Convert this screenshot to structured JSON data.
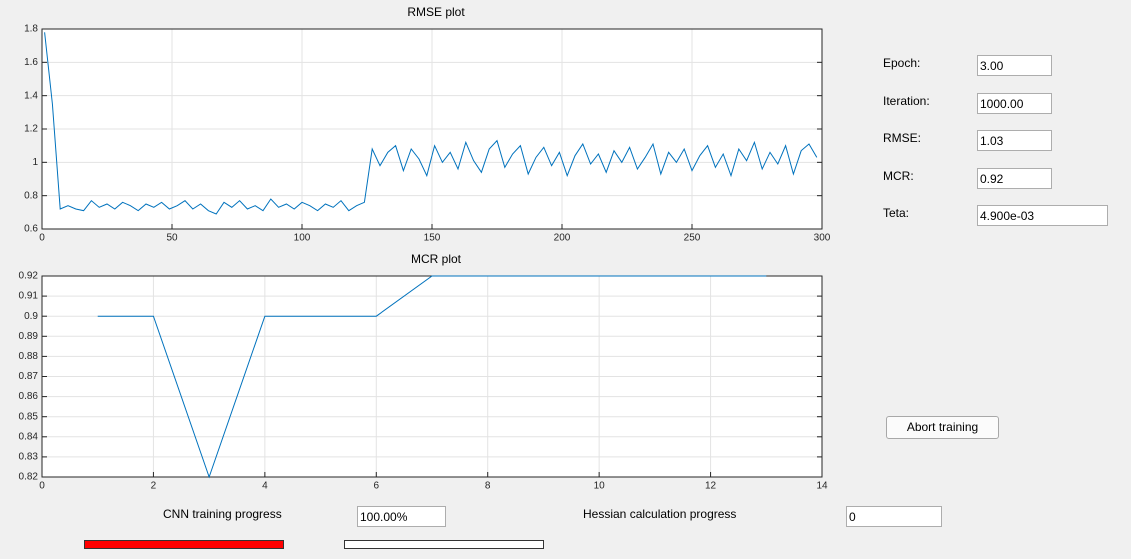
{
  "chart_data": [
    {
      "type": "line",
      "title": "RMSE plot",
      "color": "#0072bd",
      "grid": true,
      "x": [
        1,
        4,
        7,
        10,
        13,
        16,
        19,
        22,
        25,
        28,
        31,
        34,
        37,
        40,
        43,
        46,
        49,
        52,
        55,
        58,
        61,
        64,
        67,
        70,
        73,
        76,
        79,
        82,
        85,
        88,
        91,
        94,
        97,
        100,
        103,
        106,
        109,
        112,
        115,
        118,
        121,
        124,
        127,
        130,
        133,
        136,
        139,
        142,
        145,
        148,
        151,
        154,
        157,
        160,
        163,
        166,
        169,
        172,
        175,
        178,
        181,
        184,
        187,
        190,
        193,
        196,
        199,
        202,
        205,
        208,
        211,
        214,
        217,
        220,
        223,
        226,
        229,
        232,
        235,
        238,
        241,
        244,
        247,
        250,
        253,
        256,
        259,
        262,
        265,
        268,
        271,
        274,
        277,
        280,
        283,
        286,
        289,
        292,
        295,
        298
      ],
      "values": [
        1.78,
        1.35,
        0.72,
        0.74,
        0.72,
        0.71,
        0.77,
        0.73,
        0.75,
        0.72,
        0.76,
        0.74,
        0.71,
        0.75,
        0.73,
        0.76,
        0.72,
        0.74,
        0.77,
        0.72,
        0.75,
        0.71,
        0.69,
        0.76,
        0.73,
        0.77,
        0.72,
        0.74,
        0.71,
        0.78,
        0.73,
        0.75,
        0.72,
        0.76,
        0.74,
        0.71,
        0.75,
        0.73,
        0.77,
        0.71,
        0.74,
        0.76,
        1.08,
        0.98,
        1.06,
        1.1,
        0.95,
        1.08,
        1.02,
        0.92,
        1.1,
        1.0,
        1.06,
        0.96,
        1.12,
        1.01,
        0.94,
        1.08,
        1.13,
        0.97,
        1.05,
        1.1,
        0.93,
        1.03,
        1.09,
        0.98,
        1.06,
        0.92,
        1.04,
        1.11,
        0.99,
        1.05,
        0.94,
        1.07,
        1.0,
        1.09,
        0.96,
        1.03,
        1.11,
        0.93,
        1.06,
        1.0,
        1.08,
        0.95,
        1.04,
        1.1,
        0.97,
        1.05,
        0.92,
        1.08,
        1.01,
        1.12,
        0.96,
        1.06,
        0.99,
        1.1,
        0.93,
        1.07,
        1.11,
        1.03
      ],
      "xlim": [
        0,
        300
      ],
      "xticks": [
        0,
        50,
        100,
        150,
        200,
        250,
        300
      ],
      "ylim": [
        0.6,
        1.8
      ],
      "yticks": [
        0.6,
        0.8,
        1,
        1.2,
        1.4,
        1.6,
        1.8
      ]
    },
    {
      "type": "line",
      "title": "MCR plot",
      "color": "#0072bd",
      "grid": true,
      "x": [
        1,
        2,
        3,
        4,
        5,
        6,
        7,
        8,
        9,
        10,
        11,
        12,
        13
      ],
      "values": [
        0.9,
        0.9,
        0.82,
        0.9,
        0.9,
        0.9,
        0.92,
        0.92,
        0.92,
        0.92,
        0.92,
        0.92,
        0.92
      ],
      "xlim": [
        0,
        14
      ],
      "xticks": [
        0,
        2,
        4,
        6,
        8,
        10,
        12,
        14
      ],
      "ylim": [
        0.82,
        0.92
      ],
      "yticks": [
        0.82,
        0.83,
        0.84,
        0.85,
        0.86,
        0.87,
        0.88,
        0.89,
        0.9,
        0.91,
        0.92
      ]
    }
  ],
  "fields": [
    {
      "label": "Epoch:",
      "value": "3.00"
    },
    {
      "label": "Iteration:",
      "value": "1000.00"
    },
    {
      "label": "RMSE:",
      "value": "1.03"
    },
    {
      "label": "MCR:",
      "value": "0.92"
    },
    {
      "label": "Teta:",
      "value": "4.900e-03"
    }
  ],
  "abort_button": "Abort training",
  "progress": {
    "cnn_label": "CNN training progress",
    "cnn_value": "100.00%",
    "hessian_label": "Hessian calculation progress",
    "hessian_value": "0"
  }
}
